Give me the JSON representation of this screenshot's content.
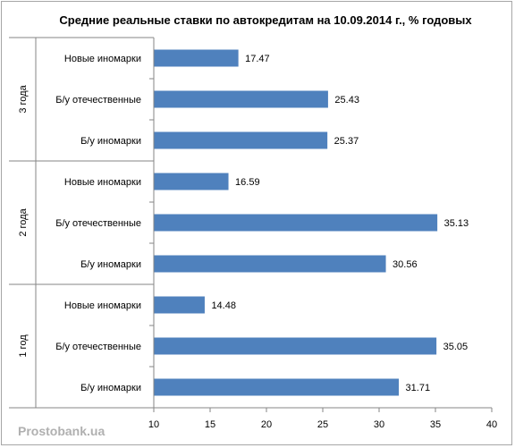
{
  "chart_data": {
    "type": "bar",
    "orientation": "horizontal",
    "title": "Средние реальные ставки по автокредитам на 10.09.2014  г., % годовых",
    "xlim": [
      10,
      40
    ],
    "xticks": [
      10,
      15,
      20,
      25,
      30,
      35,
      40
    ],
    "bar_color": "#4f81bd",
    "grid": false,
    "groups": [
      {
        "name": "3 года",
        "rows": [
          {
            "category": "Новые иномарки",
            "value": 17.47,
            "label": "17.47"
          },
          {
            "category": "Б/у отечественные",
            "value": 25.43,
            "label": "25.43"
          },
          {
            "category": "Б/у иномарки",
            "value": 25.37,
            "label": "25.37"
          }
        ]
      },
      {
        "name": "2 года",
        "rows": [
          {
            "category": "Новые иномарки",
            "value": 16.59,
            "label": "16.59"
          },
          {
            "category": "Б/у отечественные",
            "value": 35.13,
            "label": "35.13"
          },
          {
            "category": "Б/у иномарки",
            "value": 30.56,
            "label": "30.56"
          }
        ]
      },
      {
        "name": "1 год",
        "rows": [
          {
            "category": "Новые иномарки",
            "value": 14.48,
            "label": "14.48"
          },
          {
            "category": "Б/у отечественные",
            "value": 35.05,
            "label": "35.05"
          },
          {
            "category": "Б/у иномарки",
            "value": 31.71,
            "label": "31.71"
          }
        ]
      }
    ]
  },
  "watermark": "Prostobank.ua"
}
